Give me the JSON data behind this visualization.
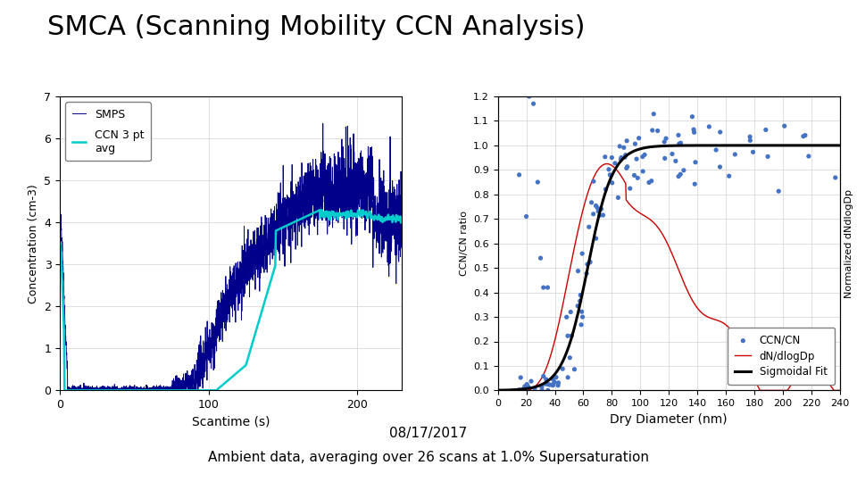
{
  "title": "SMCA (Scanning Mobility CCN Analysis)",
  "title_fontsize": 22,
  "subtitle1": "08/17/2017",
  "subtitle2": "Ambient data, averaging over 26 scans at 1.0% Supersaturation",
  "subtitle_fontsize": 11,
  "left_plot": {
    "ylabel": "Concentration (cm-3)",
    "xlabel": "Scantime (s)",
    "xlim": [
      0,
      230
    ],
    "ylim": [
      0,
      7
    ],
    "yticks": [
      0,
      1,
      2,
      3,
      4,
      5,
      6,
      7
    ],
    "xticks": [
      0,
      100,
      200
    ],
    "smps_color": "#00008B",
    "ccn_color": "#00CCCC",
    "legend_smps": "SMPS",
    "legend_ccn": "CCN 3 pt\navg"
  },
  "right_plot": {
    "ylabel_left": "CCN/CN ratio",
    "ylabel_right": "Normalized dNdlogDp",
    "xlabel": "Dry Diameter (nm)",
    "xlim": [
      0,
      240
    ],
    "ylim": [
      0,
      1.2
    ],
    "yticks": [
      0,
      0.1,
      0.2,
      0.3,
      0.4,
      0.5,
      0.6,
      0.7,
      0.8,
      0.9,
      1.0,
      1.1,
      1.2
    ],
    "xticks": [
      0,
      20,
      40,
      60,
      80,
      100,
      120,
      140,
      160,
      180,
      200,
      220,
      240
    ],
    "scatter_color": "#4472C4",
    "line_color": "#CC0000",
    "sigmoid_color": "#000000",
    "legend_ccn_cn": "CCN/CN",
    "legend_dn": "dN/dlogDp",
    "legend_sig": "Sigmoidal Fit"
  }
}
